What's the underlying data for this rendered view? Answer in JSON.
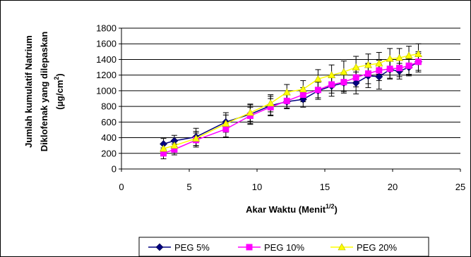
{
  "chart_data": {
    "type": "line",
    "xlabel": "Akar Waktu (Menit",
    "xlabel_sup": "1/2",
    "xlabel_end": ")",
    "ylabel_line1": "Jumlah kumulatif Natrium",
    "ylabel_line2": "Diklofenak yang dilepaskan",
    "ylabel_line3": "(µg/cm",
    "ylabel_line3_sup": "2",
    "ylabel_line3_end": ")",
    "xlim": [
      0,
      25
    ],
    "ylim": [
      0,
      1800
    ],
    "xticks": [
      0,
      5,
      10,
      15,
      20,
      25
    ],
    "yticks": [
      0,
      200,
      400,
      600,
      800,
      1000,
      1200,
      1400,
      1600,
      1800
    ],
    "grid": "horizontal",
    "legend_position": "bottom",
    "series": [
      {
        "name": "PEG 5%",
        "color": "#000080",
        "marker": "diamond",
        "points": [
          {
            "x": 3.1,
            "y": 320,
            "err": 70
          },
          {
            "x": 3.9,
            "y": 360,
            "err": 70
          },
          {
            "x": 5.5,
            "y": 410,
            "err": 110
          },
          {
            "x": 7.7,
            "y": 600,
            "err": 120
          },
          {
            "x": 9.5,
            "y": 700,
            "err": 120
          },
          {
            "x": 11.0,
            "y": 810,
            "err": 120
          },
          {
            "x": 12.2,
            "y": 860,
            "err": 90
          },
          {
            "x": 13.4,
            "y": 890,
            "err": 100
          },
          {
            "x": 14.5,
            "y": 1000,
            "err": 110
          },
          {
            "x": 15.5,
            "y": 1060,
            "err": 130
          },
          {
            "x": 16.4,
            "y": 1100,
            "err": 130
          },
          {
            "x": 17.3,
            "y": 1100,
            "err": 140
          },
          {
            "x": 18.2,
            "y": 1190,
            "err": 150
          },
          {
            "x": 19.0,
            "y": 1180,
            "err": 160
          },
          {
            "x": 19.8,
            "y": 1270,
            "err": 120
          },
          {
            "x": 20.5,
            "y": 1250,
            "err": 100
          },
          {
            "x": 21.2,
            "y": 1300,
            "err": 110
          },
          {
            "x": 21.9,
            "y": 1370,
            "err": 130
          }
        ]
      },
      {
        "name": "PEG 10%",
        "color": "#FF00FF",
        "marker": "square",
        "points": [
          {
            "x": 3.1,
            "y": 200,
            "err": 70
          },
          {
            "x": 3.9,
            "y": 250,
            "err": 70
          },
          {
            "x": 5.5,
            "y": 370,
            "err": 90
          },
          {
            "x": 7.7,
            "y": 510,
            "err": 100
          },
          {
            "x": 9.5,
            "y": 680,
            "err": 110
          },
          {
            "x": 11.0,
            "y": 790,
            "err": 110
          },
          {
            "x": 12.2,
            "y": 870,
            "err": 90
          },
          {
            "x": 13.4,
            "y": 950,
            "err": 90
          },
          {
            "x": 14.5,
            "y": 1010,
            "err": 100
          },
          {
            "x": 15.5,
            "y": 1080,
            "err": 110
          },
          {
            "x": 16.4,
            "y": 1110,
            "err": 120
          },
          {
            "x": 17.3,
            "y": 1170,
            "err": 120
          },
          {
            "x": 18.2,
            "y": 1220,
            "err": 130
          },
          {
            "x": 19.0,
            "y": 1260,
            "err": 130
          },
          {
            "x": 19.8,
            "y": 1280,
            "err": 120
          },
          {
            "x": 20.5,
            "y": 1290,
            "err": 110
          },
          {
            "x": 21.2,
            "y": 1320,
            "err": 110
          },
          {
            "x": 21.9,
            "y": 1370,
            "err": 110
          }
        ]
      },
      {
        "name": "PEG 20%",
        "color": "#FFFF00",
        "marker": "triangle",
        "points": [
          {
            "x": 3.1,
            "y": 260,
            "err": 70
          },
          {
            "x": 3.9,
            "y": 300,
            "err": 70
          },
          {
            "x": 5.5,
            "y": 390,
            "err": 90
          },
          {
            "x": 7.7,
            "y": 580,
            "err": 110
          },
          {
            "x": 9.5,
            "y": 720,
            "err": 110
          },
          {
            "x": 11.0,
            "y": 840,
            "err": 110
          },
          {
            "x": 12.2,
            "y": 980,
            "err": 100
          },
          {
            "x": 13.4,
            "y": 1020,
            "err": 110
          },
          {
            "x": 14.5,
            "y": 1150,
            "err": 120
          },
          {
            "x": 15.5,
            "y": 1200,
            "err": 130
          },
          {
            "x": 16.4,
            "y": 1240,
            "err": 140
          },
          {
            "x": 17.3,
            "y": 1300,
            "err": 140
          },
          {
            "x": 18.2,
            "y": 1330,
            "err": 140
          },
          {
            "x": 19.0,
            "y": 1350,
            "err": 140
          },
          {
            "x": 19.8,
            "y": 1410,
            "err": 130
          },
          {
            "x": 20.5,
            "y": 1420,
            "err": 120
          },
          {
            "x": 21.2,
            "y": 1450,
            "err": 120
          },
          {
            "x": 21.9,
            "y": 1470,
            "err": 130
          }
        ]
      }
    ]
  }
}
